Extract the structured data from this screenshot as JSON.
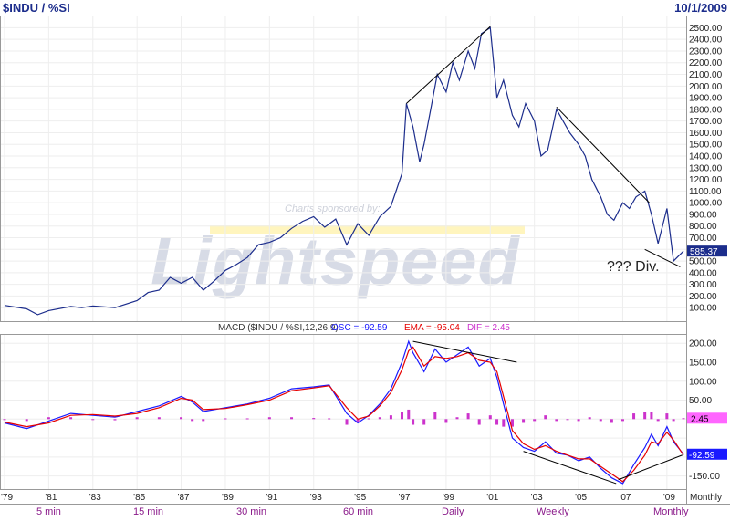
{
  "header": {
    "symbol": "$INDU / %SI",
    "date": "10/1/2009"
  },
  "watermark": {
    "sponsor": "Charts sponsored by:",
    "brand": "Lightspeed"
  },
  "annotation": "??? Div.",
  "price_labels": [
    "2500.00",
    "2400.00",
    "2300.00",
    "2200.00",
    "2100.00",
    "2000.00",
    "1900.00",
    "1800.00",
    "1700.00",
    "1600.00",
    "1500.00",
    "1400.00",
    "1300.00",
    "1200.00",
    "1100.00",
    "1000.00",
    "900.00",
    "800.00",
    "700.00",
    "600.00",
    "500.00",
    "400.00",
    "300.00",
    "200.00",
    "100.00"
  ],
  "macd_labels": [
    "200.00",
    "150.00",
    "100.00",
    "50.00",
    "-150.00"
  ],
  "year_labels": [
    "'79",
    "'81",
    "'83",
    "'85",
    "'87",
    "'89",
    "'91",
    "'93",
    "'95",
    "'97",
    "'99",
    "'01",
    "'03",
    "'05",
    "'07",
    "'09"
  ],
  "footer_label": "Monthly",
  "period_links": [
    "5 min",
    "15 min",
    "30 min",
    "60 min",
    "Daily",
    "Weekly",
    "Monthly"
  ],
  "colors": {
    "price": "#1c2d8c",
    "macd": "#1a1aff",
    "ema": "#e60000",
    "histogram": "#cc33cc",
    "title": "#1c2d8c",
    "link": "#8a1a8a",
    "last_price_tag": "#1c2d8c",
    "dif_tag": "#ff66ff",
    "osc_tag": "#1a1aff"
  },
  "chart_data": [
    {
      "type": "line",
      "title": "$INDU / %SI",
      "series_name": "$INDU / %SI",
      "last_value": "585.37",
      "ylim": [
        0,
        2550
      ],
      "x": [
        1979.0,
        1980.0,
        1980.5,
        1981.0,
        1982.0,
        1982.5,
        1983.0,
        1984.0,
        1985.0,
        1985.5,
        1986.0,
        1986.5,
        1987.0,
        1987.5,
        1988.0,
        1988.5,
        1989.0,
        1989.5,
        1990.0,
        1990.5,
        1991.0,
        1991.5,
        1992.0,
        1992.5,
        1993.0,
        1993.5,
        1994.0,
        1994.5,
        1995.0,
        1995.5,
        1996.0,
        1996.5,
        1997.0,
        1997.2,
        1997.5,
        1997.8,
        1998.0,
        1998.3,
        1998.6,
        1999.0,
        1999.3,
        1999.6,
        2000.0,
        2000.3,
        2000.6,
        2001.0,
        2001.3,
        2001.6,
        2002.0,
        2002.3,
        2002.6,
        2003.0,
        2003.3,
        2003.6,
        2004.0,
        2004.3,
        2004.6,
        2005.0,
        2005.3,
        2005.6,
        2006.0,
        2006.3,
        2006.6,
        2007.0,
        2007.3,
        2007.6,
        2008.0,
        2008.3,
        2008.6,
        2009.0,
        2009.3,
        2009.75
      ],
      "values": [
        120,
        90,
        40,
        75,
        110,
        100,
        115,
        100,
        160,
        230,
        250,
        360,
        310,
        360,
        250,
        330,
        420,
        470,
        530,
        640,
        660,
        700,
        780,
        840,
        880,
        790,
        860,
        640,
        820,
        720,
        880,
        970,
        1250,
        1850,
        1650,
        1350,
        1500,
        1800,
        2100,
        1950,
        2200,
        2050,
        2300,
        2150,
        2450,
        2500,
        1900,
        2050,
        1750,
        1650,
        1850,
        1700,
        1400,
        1450,
        1800,
        1700,
        1600,
        1500,
        1400,
        1200,
        1050,
        900,
        850,
        1000,
        950,
        1050,
        1100,
        900,
        650,
        950,
        500,
        585
      ]
    },
    {
      "type": "line",
      "title": "MACD ($INDU / %SI,12,26,9)",
      "indicator": "MACD",
      "parameters": "$INDU / %SI,12,26,9",
      "OSC": "-92.59",
      "EMA": "-95.04",
      "DIF": "2.45",
      "ylim": [
        -175,
        215
      ],
      "x": [
        1979.0,
        1980.0,
        1981.0,
        1982.0,
        1983.0,
        1984.0,
        1985.0,
        1986.0,
        1987.0,
        1987.5,
        1988.0,
        1989.0,
        1990.0,
        1991.0,
        1992.0,
        1993.0,
        1993.7,
        1994.5,
        1995.0,
        1995.5,
        1996.0,
        1996.5,
        1997.0,
        1997.3,
        1997.5,
        1998.0,
        1998.5,
        1999.0,
        1999.5,
        2000.0,
        2000.5,
        2001.0,
        2001.3,
        2001.6,
        2002.0,
        2002.5,
        2003.0,
        2003.5,
        2004.0,
        2004.5,
        2005.0,
        2005.5,
        2006.0,
        2006.5,
        2007.0,
        2007.5,
        2008.0,
        2008.3,
        2008.6,
        2009.0,
        2009.3,
        2009.75
      ],
      "series": [
        {
          "name": "OSC",
          "values": [
            -10,
            -25,
            -5,
            15,
            10,
            5,
            20,
            35,
            60,
            45,
            20,
            30,
            40,
            55,
            80,
            85,
            90,
            15,
            -10,
            10,
            40,
            80,
            150,
            205,
            175,
            125,
            185,
            150,
            170,
            190,
            140,
            160,
            110,
            40,
            -50,
            -75,
            -85,
            -60,
            -90,
            -95,
            -110,
            -100,
            -130,
            -155,
            -170,
            -120,
            -75,
            -40,
            -70,
            -20,
            -60,
            -92.59
          ]
        },
        {
          "name": "EMA",
          "values": [
            -8,
            -20,
            -10,
            10,
            12,
            8,
            15,
            30,
            55,
            50,
            25,
            28,
            38,
            50,
            75,
            82,
            88,
            30,
            0,
            8,
            35,
            70,
            130,
            180,
            190,
            140,
            165,
            160,
            165,
            175,
            155,
            150,
            125,
            60,
            -30,
            -65,
            -80,
            -70,
            -85,
            -95,
            -105,
            -105,
            -125,
            -145,
            -165,
            -135,
            -95,
            -60,
            -65,
            -35,
            -55,
            -95.04
          ]
        }
      ],
      "histogram": {
        "name": "DIF",
        "values": [
          -2,
          -5,
          5,
          5,
          -2,
          -3,
          5,
          5,
          5,
          -5,
          -5,
          2,
          2,
          5,
          5,
          3,
          2,
          -15,
          -10,
          2,
          5,
          10,
          20,
          25,
          -15,
          -15,
          20,
          -10,
          5,
          15,
          -15,
          10,
          -15,
          -20,
          -20,
          -10,
          -5,
          10,
          -5,
          0,
          -5,
          5,
          -5,
          -10,
          -5,
          15,
          20,
          20,
          -5,
          15,
          -5,
          2.45
        ]
      }
    }
  ]
}
